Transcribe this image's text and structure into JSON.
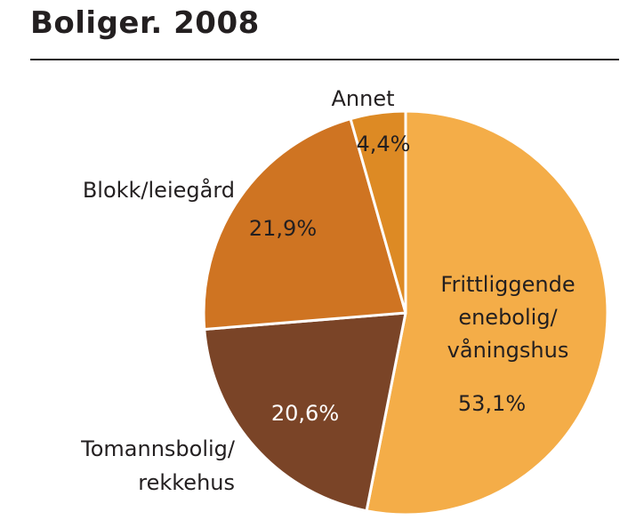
{
  "chart_data": {
    "type": "pie",
    "title": "Boliger. 2008",
    "slices": [
      {
        "label_lines": [
          "Frittliggende",
          "enebolig/",
          "våningshus"
        ],
        "value_text": "53,1%",
        "value": 53.1,
        "color": "#f4ad48"
      },
      {
        "label_lines": [
          "Tomannsbolig/",
          "rekkehus"
        ],
        "value_text": "20,6%",
        "value": 20.6,
        "color": "#7a4427"
      },
      {
        "label_lines": [
          "Blokk/leiegård"
        ],
        "value_text": "21,9%",
        "value": 21.9,
        "color": "#cf7422"
      },
      {
        "label_lines": [
          "Annet"
        ],
        "value_text": "4,4%",
        "value": 4.4,
        "color": "#dd8a24"
      }
    ]
  }
}
